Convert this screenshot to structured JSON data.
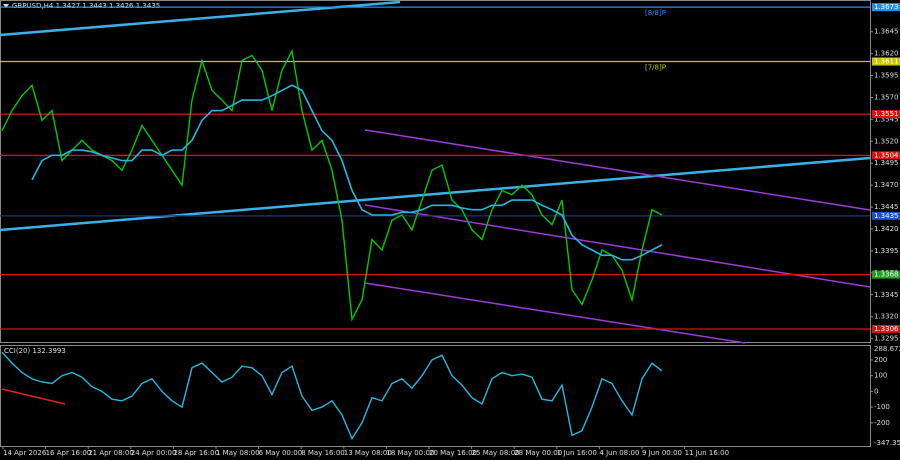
{
  "chart_data": [
    {
      "type": "line",
      "title": "GBPUSD,H4 1.3427 1.3443 1.3426 1.3435",
      "ylim": [
        1.329,
        1.368
      ],
      "yticks": [
        1.3645,
        {
          "value": 1.362,
          "label": "1.3620"
        },
        1.3595,
        {
          "value": 1.357,
          "label": "1.3570"
        },
        1.3545,
        {
          "value": 1.352,
          "label": "1.3520"
        },
        1.3495,
        {
          "value": 1.347,
          "label": "1.3470"
        },
        1.3445,
        {
          "value": 1.342,
          "label": "1.3420"
        },
        1.3395,
        {
          "value": 1.337,
          "label": "1.3370"
        },
        1.3345,
        {
          "value": 1.332,
          "label": "1.3320"
        },
        1.3295
      ],
      "time_labels": [
        "14 Apr 2026",
        "16 Apr 16:00",
        "21 Apr 08:00",
        "24 Apr 00:00",
        "28 Apr 16:00",
        "1 May 08:00",
        "6 May 00:00",
        "8 May 16:00",
        "13 May 08:00",
        "18 May 00:00",
        "20 May 16:00",
        "25 May 08:00",
        "28 May 00:00",
        "1 Jun 16:00",
        "4 Jun 08:00",
        "9 Jun 00:00",
        "11 Jun 16:00"
      ],
      "levels": [
        {
          "value": 1.3673,
          "line_color": "#1e90ff",
          "box_color": "#1e90ff",
          "murray": "[8/8]P"
        },
        {
          "value": 1.3611,
          "line_color": "#c8c800",
          "box_color": "#c8c800",
          "murray": "[7/8]P"
        },
        {
          "value": 1.3551,
          "line_color": "#e01010",
          "box_color": "#e01010"
        },
        {
          "value": 1.3504,
          "line_color": "#e01010",
          "box_color": "#e01010"
        },
        {
          "value": 1.3435,
          "line_color": "#203080",
          "box_color": "#2050d0"
        },
        {
          "value": 1.3368,
          "line_color": "#e01010",
          "box_color": "#20a020"
        },
        {
          "value": 1.3306,
          "line_color": "#e01010",
          "box_color": "#e01010"
        }
      ],
      "series": [
        {
          "color": "#00c800",
          "values": [
            1.3532,
            1.3555,
            1.3572,
            1.3584,
            1.3544,
            1.3555,
            1.3498,
            1.351,
            1.3521,
            1.351,
            1.3504,
            1.3498,
            1.3487,
            1.351,
            1.3538,
            1.3521,
            1.3504,
            1.3487,
            1.347,
            1.3567,
            1.3612,
            1.3578,
            1.3567,
            1.3555,
            1.3612,
            1.3618,
            1.3601,
            1.3555,
            1.3601,
            1.3623,
            1.3555,
            1.351,
            1.3521,
            1.3487,
            1.343,
            1.3317,
            1.3339,
            1.3408,
            1.3396,
            1.343,
            1.3436,
            1.3419,
            1.3453,
            1.3487,
            1.3493,
            1.3453,
            1.3442,
            1.3419,
            1.3408,
            1.3442,
            1.3464,
            1.3459,
            1.347,
            1.3459,
            1.3436,
            1.3425,
            1.3453,
            1.3351,
            1.3334,
            1.3362,
            1.3396,
            1.339,
            1.3373,
            1.3339,
            1.3396,
            1.3442,
            1.3436
          ]
        },
        {
          "color": "#20b8e0",
          "values": [
            null,
            null,
            null,
            1.3476,
            1.3498,
            1.3504,
            1.3504,
            1.351,
            1.351,
            1.3508,
            1.3504,
            1.3501,
            1.3498,
            1.3498,
            1.351,
            1.351,
            1.3504,
            1.351,
            1.351,
            1.3521,
            1.3544,
            1.3555,
            1.3555,
            1.3561,
            1.3567,
            1.3567,
            1.3567,
            1.3572,
            1.3578,
            1.3584,
            1.3578,
            1.3555,
            1.3532,
            1.3521,
            1.3498,
            1.3464,
            1.3442,
            1.3436,
            1.3436,
            1.3436,
            1.3439,
            1.3439,
            1.3442,
            1.3447,
            1.3447,
            1.3447,
            1.3444,
            1.3442,
            1.3442,
            1.3447,
            1.3447,
            1.3453,
            1.3453,
            1.3453,
            1.3447,
            1.3442,
            1.3436,
            1.3413,
            1.3402,
            1.3396,
            1.339,
            1.339,
            1.3385,
            1.3385,
            1.339,
            1.3396,
            1.3402
          ]
        }
      ]
    },
    {
      "type": "line",
      "title": "CCI(20) 132.3993",
      "ylim": [
        -347.3511,
        288.6739
      ],
      "yticks": [
        200,
        100,
        0,
        -100,
        -200
      ],
      "series": [
        {
          "color": "#20b8e0",
          "values": [
            250,
            180,
            120,
            80,
            60,
            50,
            100,
            120,
            90,
            30,
            0,
            -50,
            -60,
            -30,
            50,
            80,
            0,
            -60,
            -100,
            150,
            180,
            120,
            60,
            90,
            160,
            150,
            100,
            -20,
            120,
            160,
            -30,
            -120,
            -100,
            -60,
            -150,
            -300,
            -200,
            -40,
            -60,
            50,
            80,
            20,
            100,
            200,
            230,
            100,
            40,
            -40,
            -80,
            80,
            120,
            100,
            110,
            90,
            -50,
            -60,
            40,
            -280,
            -250,
            -100,
            80,
            50,
            -60,
            -150,
            80,
            180,
            130
          ]
        }
      ]
    }
  ]
}
